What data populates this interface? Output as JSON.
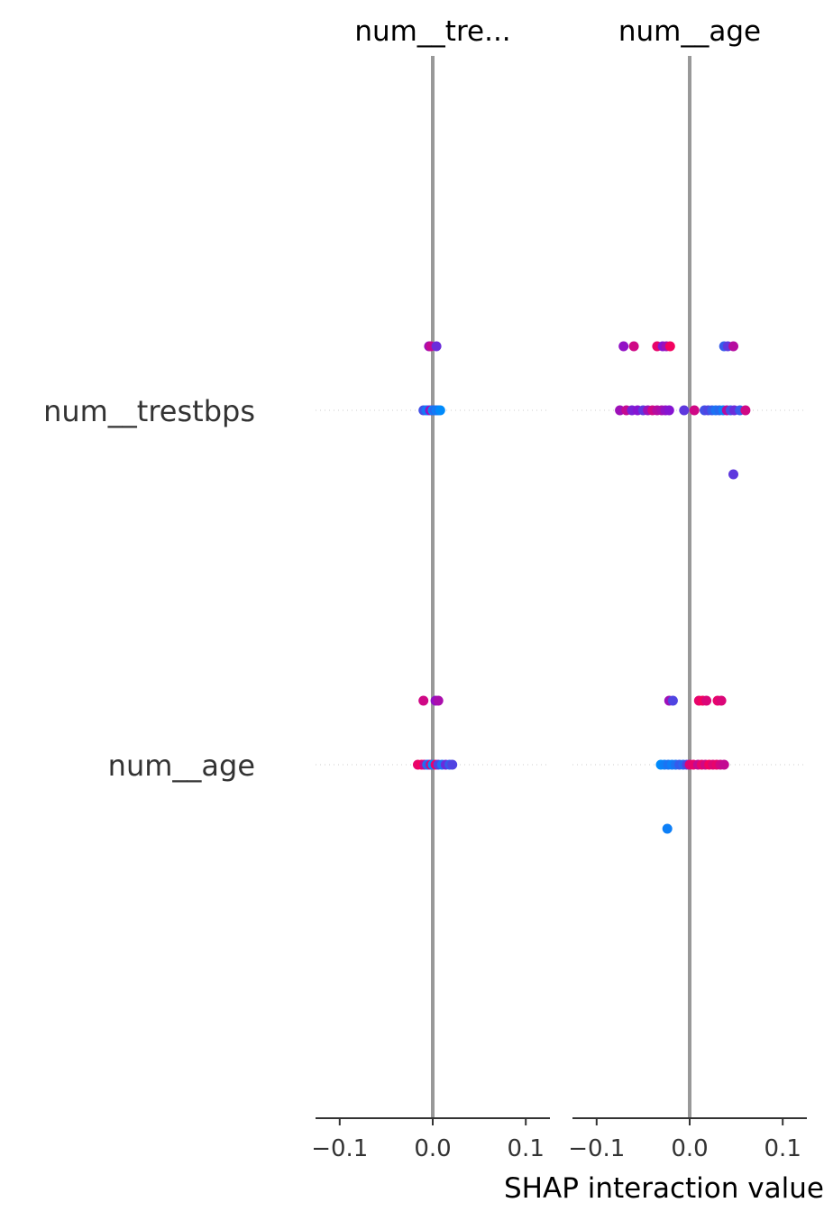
{
  "chart_data": {
    "type": "scatter",
    "xlabel": "SHAP interaction value",
    "rows": [
      "num__trestbps",
      "num__age"
    ],
    "xlim": [
      -0.13,
      0.13
    ],
    "xticks": [
      -0.1,
      0.0,
      0.1
    ],
    "xtick_labels": [
      "−0.1",
      "0.0",
      "0.1"
    ],
    "colors": {
      "low": "#008bfb",
      "high": "#ff0052",
      "zero_line": "#999999",
      "row_dots": "#cccccc"
    },
    "panels": [
      {
        "title": "num__tre...",
        "points": [
          {
            "row": 0,
            "x": -0.004,
            "y": 1,
            "t": 0.6
          },
          {
            "row": 0,
            "x": -0.002,
            "y": 1,
            "t": 0.75
          },
          {
            "row": 0,
            "x": 0.004,
            "y": 1,
            "t": 0.4
          },
          {
            "row": 0,
            "x": -0.01,
            "y": 0,
            "t": 0.25
          },
          {
            "row": 0,
            "x": -0.007,
            "y": 0,
            "t": 0.1
          },
          {
            "row": 0,
            "x": -0.005,
            "y": 0,
            "t": 0.05
          },
          {
            "row": 0,
            "x": -0.003,
            "y": 0,
            "t": 0.5
          },
          {
            "row": 0,
            "x": -0.001,
            "y": 0,
            "t": 0.7
          },
          {
            "row": 0,
            "x": 0.0,
            "y": 0,
            "t": 0.0
          },
          {
            "row": 0,
            "x": 0.002,
            "y": 0,
            "t": 0.15
          },
          {
            "row": 0,
            "x": 0.004,
            "y": 0,
            "t": 0.05
          },
          {
            "row": 0,
            "x": 0.006,
            "y": 0,
            "t": 0.1
          },
          {
            "row": 0,
            "x": 0.008,
            "y": 0,
            "t": 0.0
          },
          {
            "row": 1,
            "x": -0.01,
            "y": 1,
            "t": 0.8
          },
          {
            "row": 1,
            "x": 0.003,
            "y": 1,
            "t": 0.55
          },
          {
            "row": 1,
            "x": 0.006,
            "y": 1,
            "t": 0.65
          },
          {
            "row": 1,
            "x": -0.016,
            "y": 0,
            "t": 0.9
          },
          {
            "row": 1,
            "x": -0.012,
            "y": 0,
            "t": 0.95
          },
          {
            "row": 1,
            "x": -0.009,
            "y": 0,
            "t": 0.75
          },
          {
            "row": 1,
            "x": -0.006,
            "y": 0,
            "t": 0.1
          },
          {
            "row": 1,
            "x": -0.004,
            "y": 0,
            "t": 0.2
          },
          {
            "row": 1,
            "x": -0.002,
            "y": 0,
            "t": 0.85
          },
          {
            "row": 1,
            "x": 0.0,
            "y": 0,
            "t": 0.0
          },
          {
            "row": 1,
            "x": 0.003,
            "y": 0,
            "t": 0.9
          },
          {
            "row": 1,
            "x": 0.006,
            "y": 0,
            "t": 0.3
          },
          {
            "row": 1,
            "x": 0.01,
            "y": 0,
            "t": 0.1
          },
          {
            "row": 1,
            "x": 0.014,
            "y": 0,
            "t": 0.4
          },
          {
            "row": 1,
            "x": 0.018,
            "y": 0,
            "t": 0.2
          },
          {
            "row": 1,
            "x": 0.021,
            "y": 0,
            "t": 0.3
          }
        ]
      },
      {
        "title": "num__age",
        "points": [
          {
            "row": 0,
            "x": -0.071,
            "y": 1,
            "t": 0.55
          },
          {
            "row": 0,
            "x": -0.06,
            "y": 1,
            "t": 0.8
          },
          {
            "row": 0,
            "x": -0.035,
            "y": 1,
            "t": 0.9
          },
          {
            "row": 0,
            "x": -0.029,
            "y": 1,
            "t": 0.5
          },
          {
            "row": 0,
            "x": -0.025,
            "y": 1,
            "t": 0.6
          },
          {
            "row": 0,
            "x": -0.021,
            "y": 1,
            "t": 0.95
          },
          {
            "row": 0,
            "x": 0.037,
            "y": 1,
            "t": 0.2
          },
          {
            "row": 0,
            "x": 0.041,
            "y": 1,
            "t": 0.35
          },
          {
            "row": 0,
            "x": 0.047,
            "y": 1,
            "t": 0.7
          },
          {
            "row": 0,
            "x": -0.075,
            "y": 0,
            "t": 0.6
          },
          {
            "row": 0,
            "x": -0.068,
            "y": 0,
            "t": 0.75
          },
          {
            "row": 0,
            "x": -0.062,
            "y": 0,
            "t": 0.45
          },
          {
            "row": 0,
            "x": -0.056,
            "y": 0,
            "t": 0.5
          },
          {
            "row": 0,
            "x": -0.05,
            "y": 0,
            "t": 0.35
          },
          {
            "row": 0,
            "x": -0.045,
            "y": 0,
            "t": 0.6
          },
          {
            "row": 0,
            "x": -0.04,
            "y": 0,
            "t": 0.8
          },
          {
            "row": 0,
            "x": -0.035,
            "y": 0,
            "t": 0.7
          },
          {
            "row": 0,
            "x": -0.03,
            "y": 0,
            "t": 0.65
          },
          {
            "row": 0,
            "x": -0.026,
            "y": 0,
            "t": 0.55
          },
          {
            "row": 0,
            "x": -0.022,
            "y": 0,
            "t": 0.5
          },
          {
            "row": 0,
            "x": -0.006,
            "y": 0,
            "t": 0.35
          },
          {
            "row": 0,
            "x": 0.005,
            "y": 0,
            "t": 0.8
          },
          {
            "row": 0,
            "x": 0.016,
            "y": 0,
            "t": 0.25
          },
          {
            "row": 0,
            "x": 0.02,
            "y": 0,
            "t": 0.3
          },
          {
            "row": 0,
            "x": 0.024,
            "y": 0,
            "t": 0.2
          },
          {
            "row": 0,
            "x": 0.028,
            "y": 0,
            "t": 0.1
          },
          {
            "row": 0,
            "x": 0.032,
            "y": 0,
            "t": 0.15
          },
          {
            "row": 0,
            "x": 0.036,
            "y": 0,
            "t": 0.05
          },
          {
            "row": 0,
            "x": 0.04,
            "y": 0,
            "t": 0.7
          },
          {
            "row": 0,
            "x": 0.044,
            "y": 0,
            "t": 0.25
          },
          {
            "row": 0,
            "x": 0.048,
            "y": 0,
            "t": 0.4
          },
          {
            "row": 0,
            "x": 0.054,
            "y": 0,
            "t": 0.2
          },
          {
            "row": 0,
            "x": 0.06,
            "y": 0,
            "t": 0.8
          },
          {
            "row": 0,
            "x": 0.047,
            "y": -1,
            "t": 0.35
          },
          {
            "row": 1,
            "x": -0.022,
            "y": 1,
            "t": 0.6
          },
          {
            "row": 1,
            "x": -0.018,
            "y": 1,
            "t": 0.3
          },
          {
            "row": 1,
            "x": 0.01,
            "y": 1,
            "t": 0.9
          },
          {
            "row": 1,
            "x": 0.014,
            "y": 1,
            "t": 0.95
          },
          {
            "row": 1,
            "x": 0.018,
            "y": 1,
            "t": 0.85
          },
          {
            "row": 1,
            "x": 0.03,
            "y": 1,
            "t": 0.9
          },
          {
            "row": 1,
            "x": 0.034,
            "y": 1,
            "t": 0.85
          },
          {
            "row": 1,
            "x": -0.031,
            "y": 0,
            "t": 0.0
          },
          {
            "row": 1,
            "x": -0.027,
            "y": 0,
            "t": 0.05
          },
          {
            "row": 1,
            "x": -0.023,
            "y": 0,
            "t": 0.1
          },
          {
            "row": 1,
            "x": -0.019,
            "y": 0,
            "t": 0.05
          },
          {
            "row": 1,
            "x": -0.015,
            "y": 0,
            "t": 0.1
          },
          {
            "row": 1,
            "x": -0.011,
            "y": 0,
            "t": 0.2
          },
          {
            "row": 1,
            "x": -0.007,
            "y": 0,
            "t": 0.15
          },
          {
            "row": 1,
            "x": -0.003,
            "y": 0,
            "t": 0.3
          },
          {
            "row": 1,
            "x": 0.0,
            "y": 0,
            "t": 0.85
          },
          {
            "row": 1,
            "x": 0.004,
            "y": 0,
            "t": 0.9
          },
          {
            "row": 1,
            "x": 0.009,
            "y": 0,
            "t": 0.75
          },
          {
            "row": 1,
            "x": 0.013,
            "y": 0,
            "t": 0.9
          },
          {
            "row": 1,
            "x": 0.017,
            "y": 0,
            "t": 0.8
          },
          {
            "row": 1,
            "x": 0.021,
            "y": 0,
            "t": 0.95
          },
          {
            "row": 1,
            "x": 0.025,
            "y": 0,
            "t": 0.85
          },
          {
            "row": 1,
            "x": 0.029,
            "y": 0,
            "t": 0.9
          },
          {
            "row": 1,
            "x": 0.033,
            "y": 0,
            "t": 0.8
          },
          {
            "row": 1,
            "x": 0.037,
            "y": 0,
            "t": 0.75
          },
          {
            "row": 1,
            "x": -0.024,
            "y": -1,
            "t": 0.05
          }
        ]
      }
    ]
  }
}
